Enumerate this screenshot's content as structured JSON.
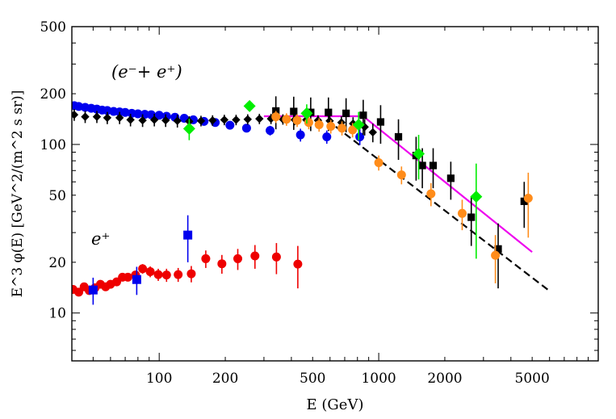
{
  "chart_data": {
    "type": "scatter",
    "title": "",
    "xlabel": "E (GeV)",
    "ylabel": "E^3 φ(E)  [GeV^2/(m^2 s sr)]",
    "xscale": "log",
    "yscale": "log",
    "xlim": [
      40,
      10000
    ],
    "ylim": [
      5.2,
      500
    ],
    "x_ticks": [
      100,
      200,
      500,
      1000,
      2000,
      5000
    ],
    "x_tick_labels": [
      "100",
      "200",
      "500",
      "1000",
      "2000",
      "5000"
    ],
    "y_ticks": [
      10,
      20,
      50,
      100,
      200,
      500
    ],
    "y_tick_labels": [
      "10",
      "20",
      "50",
      "100",
      "200",
      "500"
    ],
    "annotations": [
      {
        "name": "electron-positron-label",
        "text": "(e⁻+ e⁺)"
      },
      {
        "name": "positron-label",
        "text": "e⁺"
      }
    ],
    "series": [
      {
        "name": "electron-plus-positron-blue",
        "marker": "circle",
        "color": "#0000ee",
        "points": [
          {
            "x": 41,
            "y": 170
          },
          {
            "x": 43,
            "y": 168
          },
          {
            "x": 46,
            "y": 166
          },
          {
            "x": 49,
            "y": 164
          },
          {
            "x": 52,
            "y": 162
          },
          {
            "x": 55,
            "y": 160
          },
          {
            "x": 58,
            "y": 159
          },
          {
            "x": 62,
            "y": 157
          },
          {
            "x": 66,
            "y": 156
          },
          {
            "x": 70,
            "y": 155
          },
          {
            "x": 75,
            "y": 153
          },
          {
            "x": 80,
            "y": 152
          },
          {
            "x": 86,
            "y": 151
          },
          {
            "x": 92,
            "y": 150
          },
          {
            "x": 100,
            "y": 149
          },
          {
            "x": 108,
            "y": 147
          },
          {
            "x": 118,
            "y": 145
          },
          {
            "x": 130,
            "y": 143
          },
          {
            "x": 143,
            "y": 140
          },
          {
            "x": 160,
            "y": 137
          },
          {
            "x": 180,
            "y": 135
          },
          {
            "x": 210,
            "y": 130
          },
          {
            "x": 250,
            "y": 125
          },
          {
            "x": 320,
            "y": 121,
            "err": 8
          },
          {
            "x": 440,
            "y": 114,
            "err": 10
          },
          {
            "x": 580,
            "y": 111,
            "err": 10
          },
          {
            "x": 820,
            "y": 111,
            "err": 12
          }
        ]
      },
      {
        "name": "electron-plus-positron-black-diamond",
        "marker": "diamond",
        "color": "#000000",
        "points": [
          {
            "x": 41,
            "y": 150,
            "err": 12
          },
          {
            "x": 46,
            "y": 146,
            "err": 12
          },
          {
            "x": 52,
            "y": 146,
            "err": 12
          },
          {
            "x": 58,
            "y": 144,
            "err": 12
          },
          {
            "x": 66,
            "y": 144,
            "err": 12
          },
          {
            "x": 74,
            "y": 140,
            "err": 12
          },
          {
            "x": 84,
            "y": 139,
            "err": 12
          },
          {
            "x": 95,
            "y": 140,
            "err": 12
          },
          {
            "x": 107,
            "y": 139,
            "err": 12
          },
          {
            "x": 121,
            "y": 138,
            "err": 12
          },
          {
            "x": 137,
            "y": 137,
            "err": 10
          },
          {
            "x": 155,
            "y": 138,
            "err": 10
          },
          {
            "x": 175,
            "y": 139,
            "err": 10
          },
          {
            "x": 198,
            "y": 140,
            "err": 10
          },
          {
            "x": 224,
            "y": 140,
            "err": 10
          },
          {
            "x": 253,
            "y": 141,
            "err": 10
          },
          {
            "x": 286,
            "y": 142,
            "err": 10
          },
          {
            "x": 323,
            "y": 142,
            "err": 10
          },
          {
            "x": 366,
            "y": 141,
            "err": 10
          },
          {
            "x": 414,
            "y": 140,
            "err": 10
          },
          {
            "x": 468,
            "y": 140,
            "err": 10
          },
          {
            "x": 529,
            "y": 139,
            "err": 10
          },
          {
            "x": 598,
            "y": 138,
            "err": 10
          },
          {
            "x": 676,
            "y": 135,
            "err": 12
          },
          {
            "x": 764,
            "y": 133,
            "err": 12
          },
          {
            "x": 863,
            "y": 127,
            "err": 14
          },
          {
            "x": 940,
            "y": 118,
            "err": 15
          }
        ]
      },
      {
        "name": "electron-plus-positron-black-square",
        "marker": "square",
        "color": "#000000",
        "points": [
          {
            "x": 340,
            "y": 158,
            "err": 35
          },
          {
            "x": 410,
            "y": 157,
            "err": 35
          },
          {
            "x": 490,
            "y": 155,
            "err": 35
          },
          {
            "x": 590,
            "y": 155,
            "err": 35
          },
          {
            "x": 710,
            "y": 153,
            "err": 35
          },
          {
            "x": 850,
            "y": 149,
            "err": 35
          },
          {
            "x": 1020,
            "y": 136,
            "err": 35
          },
          {
            "x": 1230,
            "y": 111,
            "err": 30
          },
          {
            "x": 1480,
            "y": 86,
            "err": 25
          },
          {
            "x": 1580,
            "y": 75,
            "err": 20
          },
          {
            "x": 1770,
            "y": 75,
            "err": 20
          },
          {
            "x": 2130,
            "y": 63,
            "err": 16
          },
          {
            "x": 2640,
            "y": 37,
            "err": 12
          },
          {
            "x": 3500,
            "y": 24,
            "err": 10
          },
          {
            "x": 4600,
            "y": 46,
            "err": 14
          }
        ]
      },
      {
        "name": "electron-plus-positron-orange",
        "marker": "circle",
        "color": "#ff8c1a",
        "points": [
          {
            "x": 340,
            "y": 146,
            "err": 12
          },
          {
            "x": 380,
            "y": 141,
            "err": 12
          },
          {
            "x": 425,
            "y": 139,
            "err": 12
          },
          {
            "x": 480,
            "y": 135,
            "err": 12
          },
          {
            "x": 535,
            "y": 131,
            "err": 12
          },
          {
            "x": 605,
            "y": 128,
            "err": 12
          },
          {
            "x": 680,
            "y": 125,
            "err": 12
          },
          {
            "x": 760,
            "y": 122,
            "err": 12
          },
          {
            "x": 1000,
            "y": 78,
            "err": 8
          },
          {
            "x": 1270,
            "y": 66,
            "err": 8
          },
          {
            "x": 1730,
            "y": 51,
            "err": 8
          },
          {
            "x": 2400,
            "y": 39,
            "err": 8
          },
          {
            "x": 3400,
            "y": 22,
            "err": 7
          },
          {
            "x": 4800,
            "y": 48,
            "err": 20
          }
        ]
      },
      {
        "name": "electron-plus-positron-green",
        "marker": "diamond",
        "color": "#00ee00",
        "points": [
          {
            "x": 137,
            "y": 124,
            "err": 18
          },
          {
            "x": 258,
            "y": 169,
            "err": 10
          },
          {
            "x": 470,
            "y": 153,
            "err": 20
          },
          {
            "x": 810,
            "y": 131,
            "err": 25
          },
          {
            "x": 1520,
            "y": 88,
            "err": 26
          },
          {
            "x": 2780,
            "y": 49,
            "err": 28
          }
        ]
      },
      {
        "name": "positron-red",
        "marker": "circle",
        "color": "#ee0000",
        "points": [
          {
            "x": 40.5,
            "y": 13.8
          },
          {
            "x": 43,
            "y": 13.3
          },
          {
            "x": 45.5,
            "y": 14.3
          },
          {
            "x": 48,
            "y": 13.6
          },
          {
            "x": 51,
            "y": 14.1
          },
          {
            "x": 54,
            "y": 14.8
          },
          {
            "x": 57,
            "y": 14.3
          },
          {
            "x": 60,
            "y": 14.8
          },
          {
            "x": 64,
            "y": 15.3
          },
          {
            "x": 68,
            "y": 16.3
          },
          {
            "x": 72,
            "y": 16.3
          },
          {
            "x": 78,
            "y": 16.8
          },
          {
            "x": 84,
            "y": 18.3,
            "err": 1.2
          },
          {
            "x": 91,
            "y": 17.6,
            "err": 1.3
          },
          {
            "x": 99,
            "y": 16.9,
            "err": 1.4
          },
          {
            "x": 108,
            "y": 16.8,
            "err": 1.5
          },
          {
            "x": 122,
            "y": 16.9,
            "err": 1.6
          },
          {
            "x": 140,
            "y": 17.1,
            "err": 1.9
          },
          {
            "x": 163,
            "y": 21,
            "err": 2.5
          },
          {
            "x": 193,
            "y": 19.6,
            "err": 2.5
          },
          {
            "x": 228,
            "y": 21,
            "err": 3
          },
          {
            "x": 273,
            "y": 21.8,
            "err": 3.5
          },
          {
            "x": 342,
            "y": 21.5,
            "err": 4.5
          },
          {
            "x": 428,
            "y": 19.5,
            "err": 5.5
          }
        ]
      },
      {
        "name": "positron-blue-square",
        "marker": "square",
        "color": "#0000ee",
        "points": [
          {
            "x": 50,
            "y": 13.7,
            "err": 2.5
          },
          {
            "x": 79,
            "y": 15.8,
            "err": 3
          },
          {
            "x": 135,
            "y": 29,
            "err": 9
          }
        ]
      }
    ],
    "lines": [
      {
        "name": "magenta-fit-line",
        "color": "#ee00ee",
        "style": "solid",
        "points": [
          {
            "x": 300,
            "y": 147
          },
          {
            "x": 850,
            "y": 147
          },
          {
            "x": 5000,
            "y": 23
          }
        ]
      },
      {
        "name": "black-dashed-fit-line",
        "color": "#000000",
        "style": "dashed",
        "points": [
          {
            "x": 580,
            "y": 140
          },
          {
            "x": 6000,
            "y": 13.5
          }
        ]
      }
    ]
  }
}
